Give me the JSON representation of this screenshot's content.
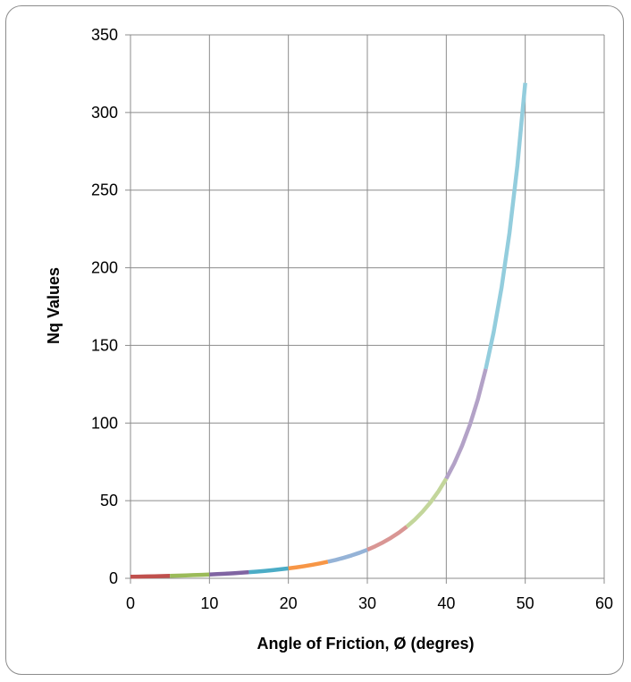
{
  "chart_data": {
    "type": "line",
    "title": "",
    "xlabel": "Angle of Friction, Ø (degres)",
    "ylabel": "Nq Values",
    "xlim": [
      0,
      60
    ],
    "ylim": [
      0,
      350
    ],
    "x_ticks": [
      0,
      10,
      20,
      30,
      40,
      50,
      60
    ],
    "y_ticks": [
      0,
      50,
      100,
      150,
      200,
      250,
      300,
      350
    ],
    "grid": true,
    "legend": "none",
    "series": [
      {
        "color": "#c0504d",
        "x": [
          0,
          1,
          2,
          3,
          4,
          5
        ],
        "y": [
          1.0,
          1.09,
          1.2,
          1.31,
          1.43,
          1.57
        ]
      },
      {
        "color": "#9bbb59",
        "x": [
          5,
          6,
          7,
          8,
          9,
          10
        ],
        "y": [
          1.57,
          1.72,
          1.88,
          2.06,
          2.25,
          2.47
        ]
      },
      {
        "color": "#8064a2",
        "x": [
          10,
          11,
          12,
          13,
          14,
          15
        ],
        "y": [
          2.47,
          2.71,
          2.97,
          3.26,
          3.59,
          3.94
        ]
      },
      {
        "color": "#4bacc6",
        "x": [
          15,
          16,
          17,
          18,
          19,
          20
        ],
        "y": [
          3.94,
          4.34,
          4.77,
          5.26,
          5.8,
          6.4
        ]
      },
      {
        "color": "#f79646",
        "x": [
          20,
          21,
          22,
          23,
          24,
          25
        ],
        "y": [
          6.4,
          7.07,
          7.82,
          8.66,
          9.6,
          10.66
        ]
      },
      {
        "color": "#95b3d7",
        "x": [
          25,
          26,
          27,
          28,
          29,
          30
        ],
        "y": [
          10.66,
          11.85,
          13.2,
          14.72,
          16.44,
          18.4
        ]
      },
      {
        "color": "#d99694",
        "x": [
          30,
          31,
          32,
          33,
          34,
          35
        ],
        "y": [
          18.4,
          20.63,
          23.18,
          26.09,
          29.44,
          33.3
        ]
      },
      {
        "color": "#c3d69b",
        "x": [
          35,
          36,
          37,
          38,
          39,
          40
        ],
        "y": [
          33.3,
          37.75,
          42.92,
          48.93,
          55.96,
          64.2
        ]
      },
      {
        "color": "#b3a2c7",
        "x": [
          40,
          41,
          42,
          43,
          44,
          45
        ],
        "y": [
          64.2,
          73.9,
          85.38,
          99.02,
          115.31,
          134.88
        ]
      },
      {
        "color": "#93cddd",
        "x": [
          45,
          46,
          47,
          48,
          49,
          50
        ],
        "y": [
          134.88,
          158.51,
          187.21,
          222.31,
          265.51,
          319.07
        ]
      }
    ]
  }
}
